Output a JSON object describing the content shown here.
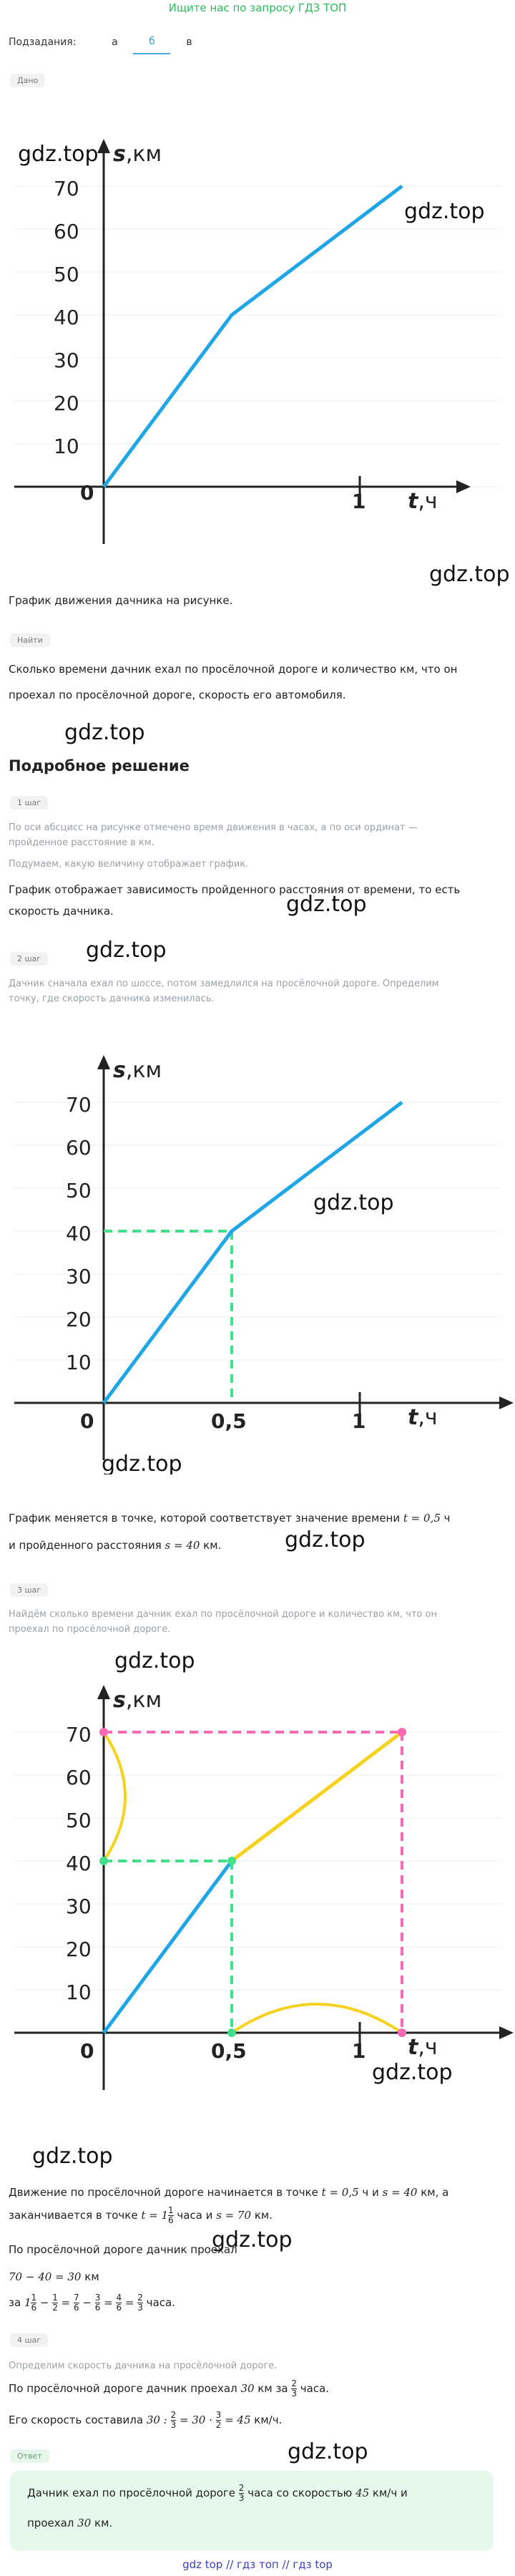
{
  "banner": "Ищите нас по запросу ГДЗ ТОП",
  "tabs": {
    "label": "Подзадания:",
    "items": [
      "а",
      "б",
      "в"
    ],
    "active": 1
  },
  "given": {
    "tag": "Дано",
    "caption": "График движения дачника на рисунке."
  },
  "find": {
    "tag": "Найти",
    "text_line1": "Сколько времени дачник ехал по просёлочной дороге и количество км, что он",
    "text_line2": "проехал по просёлочной дороге, скорость его автомобиля."
  },
  "solution_heading": "Подробное решение",
  "watermark": "gdz.top",
  "graph_labels": {
    "s": "s",
    "s_unit": ",км",
    "t": "t",
    "t_unit": ",ч",
    "zero": "0",
    "one": "1",
    "half": "0,5",
    "y_ticks": [
      "70",
      "60",
      "50",
      "40",
      "30",
      "20",
      "10"
    ]
  },
  "step1": {
    "tag": "1 шаг",
    "muted1": "По оси абсцисс на рисунке отмечено время движения в часах, а по оси ординат —",
    "muted2": "пройденное расстояние в км.",
    "muted3": "Подумаем, какую величину отображает график.",
    "text1": "График отображает зависимость пройденного расстояния от времени, то есть",
    "text2": "скорость дачника."
  },
  "step2": {
    "tag": "2 шаг",
    "muted1": "Дачник сначала ехал по шоссе, потом замедлился на просёлочной дороге. Определим",
    "muted2": "точку, где скорость дачника изменилась.",
    "text1a": "График меняется в точке, которой соответствует значение времени ",
    "text1m": "t = 0,5",
    "text1b": " ч",
    "text2a": "и пройденного расстояния ",
    "text2m": "s = 40",
    "text2b": " км."
  },
  "step3": {
    "tag": "3 шаг",
    "muted1": "Найдём сколько времени дачник ехал по просёлочной дороге и количество км, что он",
    "muted2": "проехал по просёлочной дороге.",
    "p1a": "Движение по просёлочной дороге начинается в точке ",
    "p1m1": "t = 0,5",
    "p1b": " ч и ",
    "p1m2": "s = 40",
    "p1c": " км, а",
    "p2a": "заканчивается в точке ",
    "p2m": "t = 1",
    "p2frac_n": "1",
    "p2frac_d": "6",
    "p2b": " часа и ",
    "p2m2": "s = 70",
    "p2c": " км.",
    "p3": "По просёлочной дороге дачник проехал",
    "p4m": "70 − 40 = 30",
    "p4b": " км",
    "p5a": "за ",
    "p5b": " часа."
  },
  "step4": {
    "tag": "4 шаг",
    "muted1": "Определим скорость дачника на просёлочной дороге.",
    "p1a": "По просёлочной дороге дачник проехал ",
    "p1m": "30",
    "p1b": " км за ",
    "p1c": " часа.",
    "p2a": "Его скорость составила ",
    "p2m": "30 : ",
    "p2m2": " = 30 · ",
    "p2m3": " = 45",
    "p2b": " км/ч."
  },
  "answer": {
    "tag": "Ответ",
    "l1a": "Дачник ехал по просёлочной дороге ",
    "l1b": " часа со скоростью ",
    "l1m": "45",
    "l1c": " км/ч и",
    "l2a": "проехал ",
    "l2m": "30",
    "l2b": " км."
  },
  "footer": "gdz top  //  гдз топ  //  гдз top",
  "colors": {
    "line_blue": "#1ea6e6",
    "dash_green": "#43e08c",
    "dash_pink": "#f76ab1",
    "arc_yellow": "#f6d21f",
    "banner_green": "#2dbb5b",
    "answer_bg": "#e6f8ec",
    "footer_blue": "#3c3dbd"
  }
}
